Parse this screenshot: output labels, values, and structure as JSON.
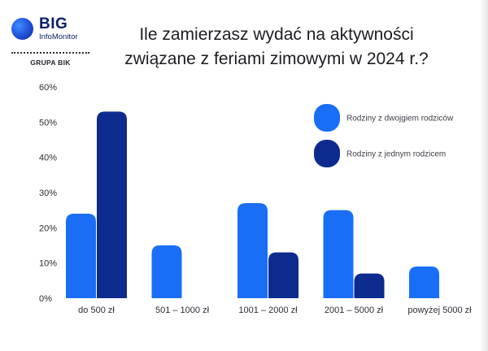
{
  "brand": {
    "name": "BIG",
    "subtitle": "InfoMonitor",
    "group": "GRUPA BIK"
  },
  "title": {
    "line1": "Ile zamierzasz wydać na aktywności",
    "line2": "związane z feriami zimowymi w 2024 r.?"
  },
  "chart_data": {
    "type": "bar",
    "categories": [
      "do 500 zł",
      "501 – 1000 zł",
      "1001 – 2000 zł",
      "2001 – 5000 zł",
      "powyżej 5000 zł"
    ],
    "series": [
      {
        "name": "Rodziny z dwojgiem rodziców",
        "color": "#1a6ef5",
        "values": [
          24,
          15,
          27,
          25,
          9
        ]
      },
      {
        "name": "Rodziny z jednym rodzicem",
        "color": "#0d2b8e",
        "values": [
          53,
          0,
          13,
          7,
          0
        ]
      }
    ],
    "y_ticks": [
      "0%",
      "10%",
      "20%",
      "30%",
      "40%",
      "50%",
      "60%"
    ],
    "ylim": [
      0,
      60
    ],
    "grid": false,
    "legend_position": "top-right"
  }
}
